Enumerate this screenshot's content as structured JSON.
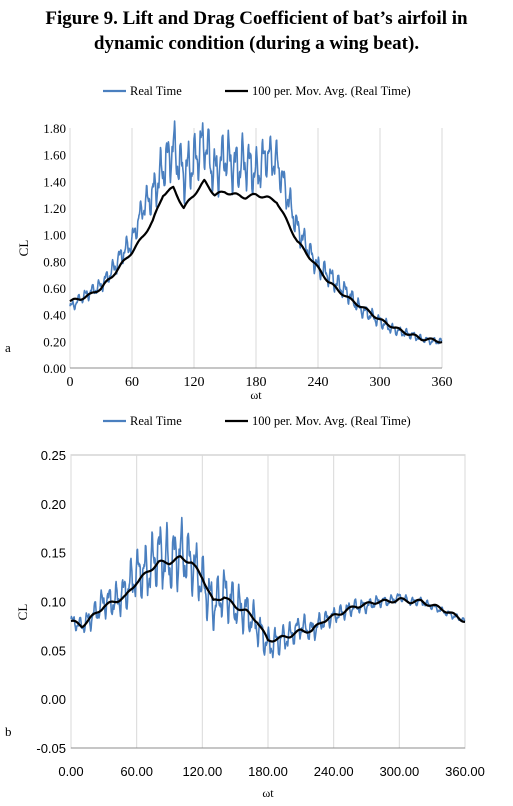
{
  "figure": {
    "title_line1": "Figure 9. Lift and Drag Coefficient of bat’s airfoil in",
    "title_line2": "dynamic condition (during a wing beat).",
    "colors": {
      "real_time": "#4a7fbf",
      "moving_avg": "#000000",
      "grid": "#d9d9d9"
    }
  },
  "chart_data": [
    {
      "type": "line",
      "panel_label": "a",
      "xlabel": "ωt",
      "ylabel": "CL",
      "x_ticks": [
        "0",
        "60",
        "120",
        "180",
        "240",
        "300",
        "360"
      ],
      "y_ticks": [
        "0.00",
        "0.20",
        "0.40",
        "0.60",
        "0.80",
        "1.00",
        "1.20",
        "1.40",
        "1.60",
        "1.80"
      ],
      "xlim": [
        0,
        360
      ],
      "ylim": [
        0,
        1.8
      ],
      "grid": "vertical",
      "legend_position": "top",
      "series": [
        {
          "name": "Real Time",
          "color": "#4a7fbf",
          "x": [
            0,
            10,
            20,
            30,
            40,
            50,
            60,
            70,
            80,
            90,
            100,
            110,
            120,
            130,
            140,
            150,
            160,
            170,
            180,
            190,
            200,
            210,
            220,
            230,
            240,
            250,
            260,
            270,
            280,
            290,
            300,
            310,
            320,
            330,
            340,
            350,
            360
          ],
          "y": [
            0.45,
            0.52,
            0.57,
            0.62,
            0.72,
            0.85,
            0.95,
            1.2,
            1.3,
            1.5,
            1.65,
            1.45,
            1.55,
            1.7,
            1.45,
            1.6,
            1.5,
            1.55,
            1.45,
            1.6,
            1.55,
            1.3,
            1.05,
            0.9,
            0.75,
            0.7,
            0.62,
            0.55,
            0.45,
            0.4,
            0.35,
            0.3,
            0.27,
            0.25,
            0.22,
            0.2,
            0.2
          ],
          "oscillation_amplitude": [
            0.05,
            0.05,
            0.06,
            0.06,
            0.08,
            0.1,
            0.1,
            0.12,
            0.18,
            0.22,
            0.24,
            0.24,
            0.24,
            0.24,
            0.24,
            0.24,
            0.24,
            0.24,
            0.22,
            0.2,
            0.18,
            0.15,
            0.12,
            0.1,
            0.1,
            0.1,
            0.09,
            0.08,
            0.07,
            0.06,
            0.06,
            0.05,
            0.04,
            0.04,
            0.03,
            0.03,
            0.03
          ]
        },
        {
          "name": "100 per. Mov. Avg. (Real Time)",
          "color": "#000000",
          "x": [
            0,
            10,
            20,
            30,
            40,
            50,
            60,
            70,
            80,
            90,
            100,
            110,
            120,
            130,
            140,
            150,
            160,
            170,
            180,
            190,
            200,
            210,
            220,
            230,
            240,
            250,
            260,
            270,
            280,
            290,
            300,
            310,
            320,
            330,
            340,
            350,
            360
          ],
          "y": [
            0.5,
            0.52,
            0.55,
            0.6,
            0.68,
            0.78,
            0.87,
            0.98,
            1.1,
            1.3,
            1.35,
            1.2,
            1.3,
            1.4,
            1.3,
            1.32,
            1.3,
            1.28,
            1.3,
            1.28,
            1.25,
            1.1,
            0.95,
            0.85,
            0.75,
            0.65,
            0.58,
            0.52,
            0.47,
            0.42,
            0.36,
            0.32,
            0.28,
            0.25,
            0.22,
            0.21,
            0.2
          ]
        }
      ]
    },
    {
      "type": "line",
      "panel_label": "b",
      "xlabel": "ωt",
      "ylabel": "CL",
      "x_ticks": [
        "0.00",
        "60.00",
        "120.00",
        "180.00",
        "240.00",
        "300.00",
        "360.00"
      ],
      "y_ticks": [
        "-0.05",
        "0.00",
        "0.05",
        "0.10",
        "0.15",
        "0.20",
        "0.25"
      ],
      "xlim": [
        0,
        360
      ],
      "ylim": [
        -0.05,
        0.25
      ],
      "grid": "vertical",
      "legend_position": "top",
      "series": [
        {
          "name": "Real Time",
          "color": "#4a7fbf",
          "x": [
            0,
            10,
            20,
            30,
            40,
            50,
            60,
            70,
            80,
            90,
            100,
            110,
            120,
            130,
            140,
            150,
            160,
            170,
            180,
            190,
            200,
            210,
            220,
            230,
            240,
            250,
            260,
            270,
            280,
            290,
            300,
            310,
            320,
            330,
            340,
            350,
            360
          ],
          "y": [
            0.08,
            0.075,
            0.085,
            0.1,
            0.1,
            0.11,
            0.13,
            0.13,
            0.15,
            0.14,
            0.15,
            0.14,
            0.12,
            0.095,
            0.11,
            0.095,
            0.09,
            0.075,
            0.055,
            0.06,
            0.065,
            0.075,
            0.07,
            0.08,
            0.085,
            0.09,
            0.095,
            0.095,
            0.1,
            0.1,
            0.105,
            0.1,
            0.1,
            0.095,
            0.09,
            0.085,
            0.08
          ],
          "oscillation_amplitude": [
            0.008,
            0.01,
            0.015,
            0.018,
            0.02,
            0.025,
            0.03,
            0.035,
            0.04,
            0.04,
            0.04,
            0.035,
            0.035,
            0.03,
            0.03,
            0.028,
            0.025,
            0.022,
            0.02,
            0.018,
            0.016,
            0.015,
            0.014,
            0.012,
            0.01,
            0.01,
            0.009,
            0.008,
            0.007,
            0.006,
            0.005,
            0.005,
            0.005,
            0.004,
            0.004,
            0.004,
            0.003
          ]
        },
        {
          "name": "100 per. Mov. Avg. (Real Time)",
          "color": "#000000",
          "x": [
            0,
            10,
            20,
            30,
            40,
            50,
            60,
            70,
            80,
            90,
            100,
            110,
            120,
            130,
            140,
            150,
            160,
            170,
            180,
            190,
            200,
            210,
            220,
            230,
            240,
            250,
            260,
            270,
            280,
            290,
            300,
            310,
            320,
            330,
            340,
            350,
            360
          ],
          "y": [
            0.08,
            0.075,
            0.085,
            0.095,
            0.1,
            0.105,
            0.12,
            0.13,
            0.14,
            0.14,
            0.145,
            0.14,
            0.125,
            0.1,
            0.105,
            0.095,
            0.09,
            0.08,
            0.06,
            0.062,
            0.065,
            0.07,
            0.07,
            0.08,
            0.085,
            0.09,
            0.095,
            0.097,
            0.1,
            0.1,
            0.102,
            0.1,
            0.1,
            0.096,
            0.092,
            0.086,
            0.08
          ]
        }
      ]
    }
  ]
}
